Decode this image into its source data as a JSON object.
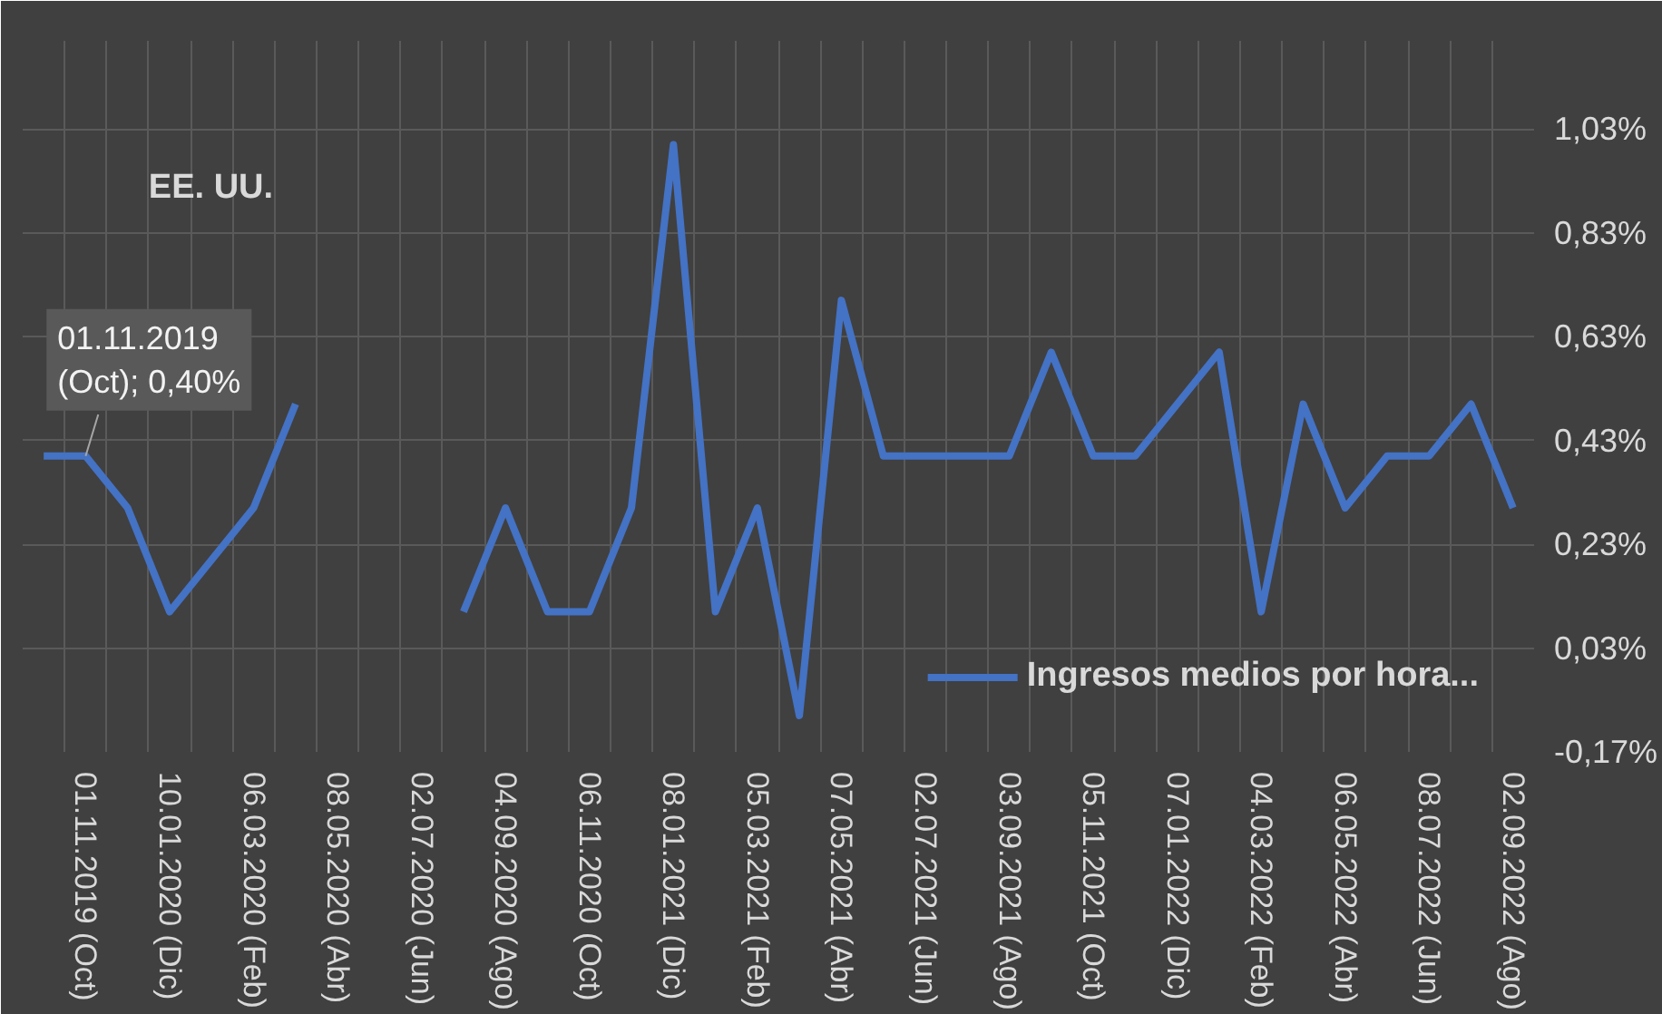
{
  "chart_data": {
    "type": "line",
    "title": "EE. UU.",
    "categories": [
      null,
      "01.11.2019 (Oct)",
      null,
      "10.01.2020 (Dic)",
      null,
      "06.03.2020 (Feb)",
      null,
      "08.05.2020 (Abr)",
      null,
      "02.07.2020 (Jun)",
      null,
      "04.09.2020 (Ago)",
      null,
      "06.11.2020 (Oct)",
      null,
      "08.01.2021 (Dic)",
      null,
      "05.03.2021 (Feb)",
      null,
      "07.05.2021 (Abr)",
      null,
      "02.07.2021 (Jun)",
      null,
      "03.09.2021 (Ago)",
      null,
      "05.11.2021 (Oct)",
      null,
      "07.01.2022 (Dic)",
      null,
      "04.03.2022 (Feb)",
      null,
      "06.05.2022 (Abr)",
      null,
      "08.07.2022 (Jun)",
      null,
      "02.09.2022 (Ago)"
    ],
    "series": [
      {
        "name": "Ingresos medios por hora...",
        "color": "#4472c4",
        "values": [
          0.4,
          0.4,
          0.3,
          0.1,
          0.2,
          0.3,
          0.5,
          null,
          null,
          null,
          0.1,
          0.3,
          0.1,
          0.1,
          0.3,
          1.0,
          0.1,
          0.3,
          -0.1,
          0.7,
          0.4,
          0.4,
          0.4,
          0.4,
          0.6,
          0.4,
          0.4,
          0.5,
          0.6,
          0.1,
          0.5,
          0.3,
          0.4,
          0.4,
          0.5,
          0.3
        ]
      }
    ],
    "ylim": [
      -0.17,
      1.2
    ],
    "yticks": [
      {
        "value": -0.17,
        "label": "-0,17%"
      },
      {
        "value": 0.03,
        "label": "0,03%"
      },
      {
        "value": 0.23,
        "label": "0,23%"
      },
      {
        "value": 0.43,
        "label": "0,43%"
      },
      {
        "value": 0.63,
        "label": "0,63%"
      },
      {
        "value": 0.83,
        "label": "0,83%"
      },
      {
        "value": 1.03,
        "label": "1,03%"
      }
    ],
    "annotations": [
      {
        "text": "01.11.2019 (Oct); 0,40%",
        "x": "01.11.2019 (Oct)",
        "y": 0.4
      }
    ],
    "grid": true,
    "legend": "bottom right",
    "marker": "none",
    "line_style": "solid"
  }
}
